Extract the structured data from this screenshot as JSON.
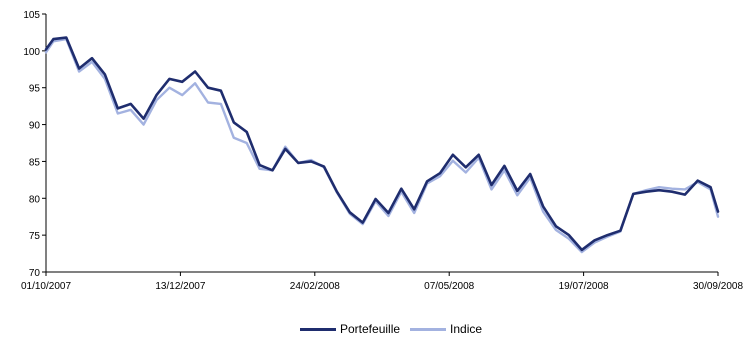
{
  "chart_data": {
    "type": "line",
    "title": "",
    "xlabel": "",
    "ylabel": "",
    "ylim": [
      70,
      105
    ],
    "yticks": [
      70,
      75,
      80,
      85,
      90,
      95,
      100,
      105
    ],
    "ytick_labels": [
      "70",
      "75",
      "80",
      "85",
      "90",
      "95",
      "100",
      "105"
    ],
    "xtick_labels": [
      "01/10/2007",
      "13/12/2007",
      "24/02/2008",
      "07/05/2008",
      "19/07/2008",
      "30/09/2008"
    ],
    "grid": false,
    "legend_position": "bottom",
    "x": [
      "2007-10-01",
      "2007-10-05",
      "2007-10-12",
      "2007-10-19",
      "2007-10-26",
      "2007-11-02",
      "2007-11-09",
      "2007-11-16",
      "2007-11-23",
      "2007-11-30",
      "2007-12-07",
      "2007-12-14",
      "2007-12-21",
      "2007-12-28",
      "2008-01-04",
      "2008-01-11",
      "2008-01-18",
      "2008-01-25",
      "2008-02-01",
      "2008-02-08",
      "2008-02-15",
      "2008-02-22",
      "2008-02-29",
      "2008-03-07",
      "2008-03-14",
      "2008-03-21",
      "2008-03-28",
      "2008-04-04",
      "2008-04-11",
      "2008-04-18",
      "2008-04-25",
      "2008-05-02",
      "2008-05-09",
      "2008-05-16",
      "2008-05-23",
      "2008-05-30",
      "2008-06-06",
      "2008-06-13",
      "2008-06-20",
      "2008-06-27",
      "2008-07-04",
      "2008-07-11",
      "2008-07-18",
      "2008-07-25",
      "2008-08-01",
      "2008-08-08",
      "2008-08-15",
      "2008-08-22",
      "2008-08-29",
      "2008-09-05",
      "2008-09-12",
      "2008-09-19",
      "2008-09-26",
      "2008-09-30"
    ],
    "series": [
      {
        "name": "Portefeuille",
        "color": "#1f2d6e",
        "values": [
          100.2,
          101.6,
          101.8,
          97.6,
          99.0,
          96.8,
          92.2,
          92.8,
          90.8,
          94.0,
          96.2,
          95.8,
          97.2,
          95.0,
          94.6,
          90.3,
          89.0,
          84.5,
          83.8,
          86.7,
          84.8,
          85.0,
          84.3,
          80.9,
          78.1,
          76.7,
          79.9,
          78.0,
          81.3,
          78.5,
          82.3,
          83.4,
          85.9,
          84.2,
          85.9,
          81.8,
          84.4,
          81.0,
          83.3,
          78.9,
          76.2,
          75.0,
          73.0,
          74.3,
          75.0,
          75.6,
          80.6,
          80.9,
          81.1,
          80.9,
          80.5,
          82.4,
          81.5,
          78.2
        ]
      },
      {
        "name": "Indice",
        "color": "#a3b2e0",
        "values": [
          99.8,
          101.3,
          101.6,
          97.2,
          98.5,
          96.2,
          91.5,
          92.0,
          90.0,
          93.3,
          95.0,
          94.0,
          95.6,
          93.0,
          92.8,
          88.2,
          87.5,
          84.0,
          83.8,
          87.0,
          84.8,
          85.2,
          84.2,
          80.8,
          77.9,
          76.5,
          79.6,
          77.6,
          80.9,
          78.0,
          82.0,
          83.0,
          85.1,
          83.5,
          85.5,
          81.2,
          83.8,
          80.4,
          82.8,
          78.2,
          75.7,
          74.5,
          72.7,
          74.0,
          74.8,
          75.5,
          80.6,
          81.1,
          81.5,
          81.3,
          81.2,
          82.2,
          81.2,
          77.5
        ]
      }
    ]
  }
}
